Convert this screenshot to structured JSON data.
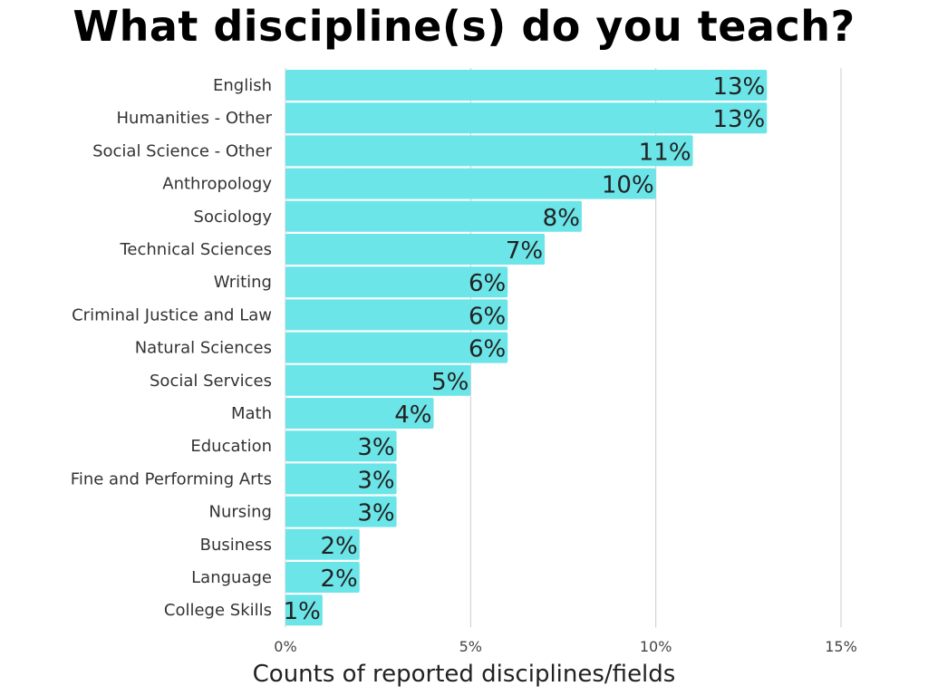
{
  "chart_data": {
    "type": "bar",
    "orientation": "horizontal",
    "title": "What discipline(s) do you teach?",
    "xlabel": "Counts of reported disciplines/fields",
    "ylabel": "",
    "xlim": [
      0,
      15
    ],
    "xticks": [
      0,
      5,
      10,
      15
    ],
    "xtick_labels": [
      "0%",
      "5%",
      "10%",
      "15%"
    ],
    "grid": "vertical",
    "legend": "none",
    "bar_color": "#6be5e8",
    "categories": [
      "English",
      "Humanities - Other",
      "Social Science - Other",
      "Anthropology",
      "Sociology",
      "Technical Sciences",
      "Writing",
      "Criminal Justice and Law",
      "Natural Sciences",
      "Social Services",
      "Math",
      "Education",
      "Fine and Performing Arts",
      "Nursing",
      "Business",
      "Language",
      "College Skills"
    ],
    "values": [
      13,
      13,
      11,
      10,
      8,
      7,
      6,
      6,
      6,
      5,
      4,
      3,
      3,
      3,
      2,
      2,
      1
    ],
    "value_labels": [
      "13%",
      "13%",
      "11%",
      "10%",
      "8%",
      "7%",
      "6%",
      "6%",
      "6%",
      "5%",
      "4%",
      "3%",
      "3%",
      "3%",
      "2%",
      "2%",
      "1%"
    ]
  }
}
